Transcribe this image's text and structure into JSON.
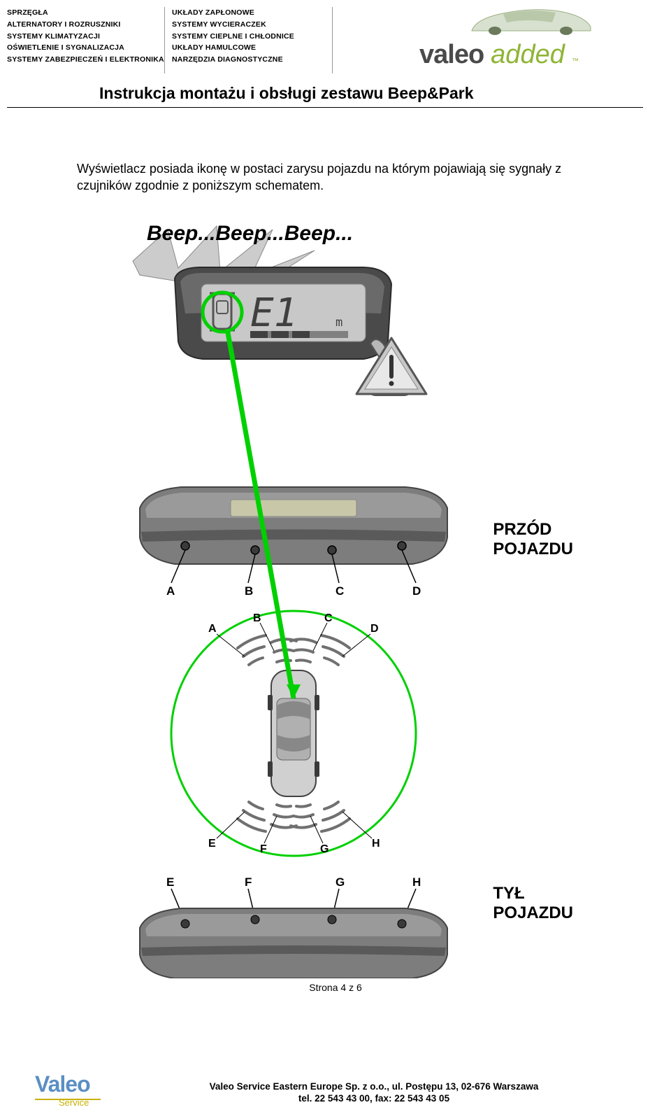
{
  "header": {
    "col1": [
      "SPRZĘGŁA",
      "ALTERNATORY I ROZRUSZNIKI",
      "SYSTEMY KLIMATYZACJI",
      "OŚWIETLENIE I SYGNALIZACJA",
      "SYSTEMY ZABEZPIECZEŃ I ELEKTRONIKA"
    ],
    "col2": [
      "UKŁADY ZAPŁONOWE",
      "SYSTEMY WYCIERACZEK",
      "SYSTEMY CIEPLNE I CHŁODNICE",
      "UKŁADY HAMULCOWE",
      "NARZĘDZIA DIAGNOSTYCZNE"
    ],
    "brand": "valeo",
    "brand_suffix": "added"
  },
  "title": "Instrukcja montażu i obsługi zestawu Beep&Park",
  "body_text": "Wyświetlacz posiada ikonę w postaci zarysu pojazdu na którym pojawiają się sygnały z czujników zgodnie z poniższym schematem.",
  "diagram": {
    "beep_text": "Beep...Beep...Beep...",
    "display_value": "E1",
    "display_unit": "m",
    "front_label": "PRZÓD POJAZDU",
    "rear_label": "TYŁ POJAZDU",
    "front_sensors": [
      "A",
      "B",
      "C",
      "D"
    ],
    "top_sensors": [
      "A",
      "B",
      "C",
      "D"
    ],
    "bottom_sensors": [
      "E",
      "F",
      "G",
      "H"
    ],
    "rear_sensors": [
      "E",
      "F",
      "G",
      "H"
    ],
    "colors": {
      "bumper": "#7d7d7d",
      "bumper_dark": "#5a5a5a",
      "display_body": "#4a4a4a",
      "display_screen": "#c8c8c8",
      "green_circle": "#00d000",
      "green_line": "#00d000",
      "warning_tri": "#b8b8b8",
      "burst": "#cccccc",
      "arc": "#707070",
      "text": "#000000"
    }
  },
  "page_number": "Strona 4 z 6",
  "footer": {
    "logo_brand": "Valeo",
    "logo_sub": "Service",
    "line1": "Valeo Service Eastern Europe Sp. z o.o., ul. Postępu 13, 02-676 Warszawa",
    "line2": "tel. 22 543 43 00, fax: 22 543 43 05"
  }
}
